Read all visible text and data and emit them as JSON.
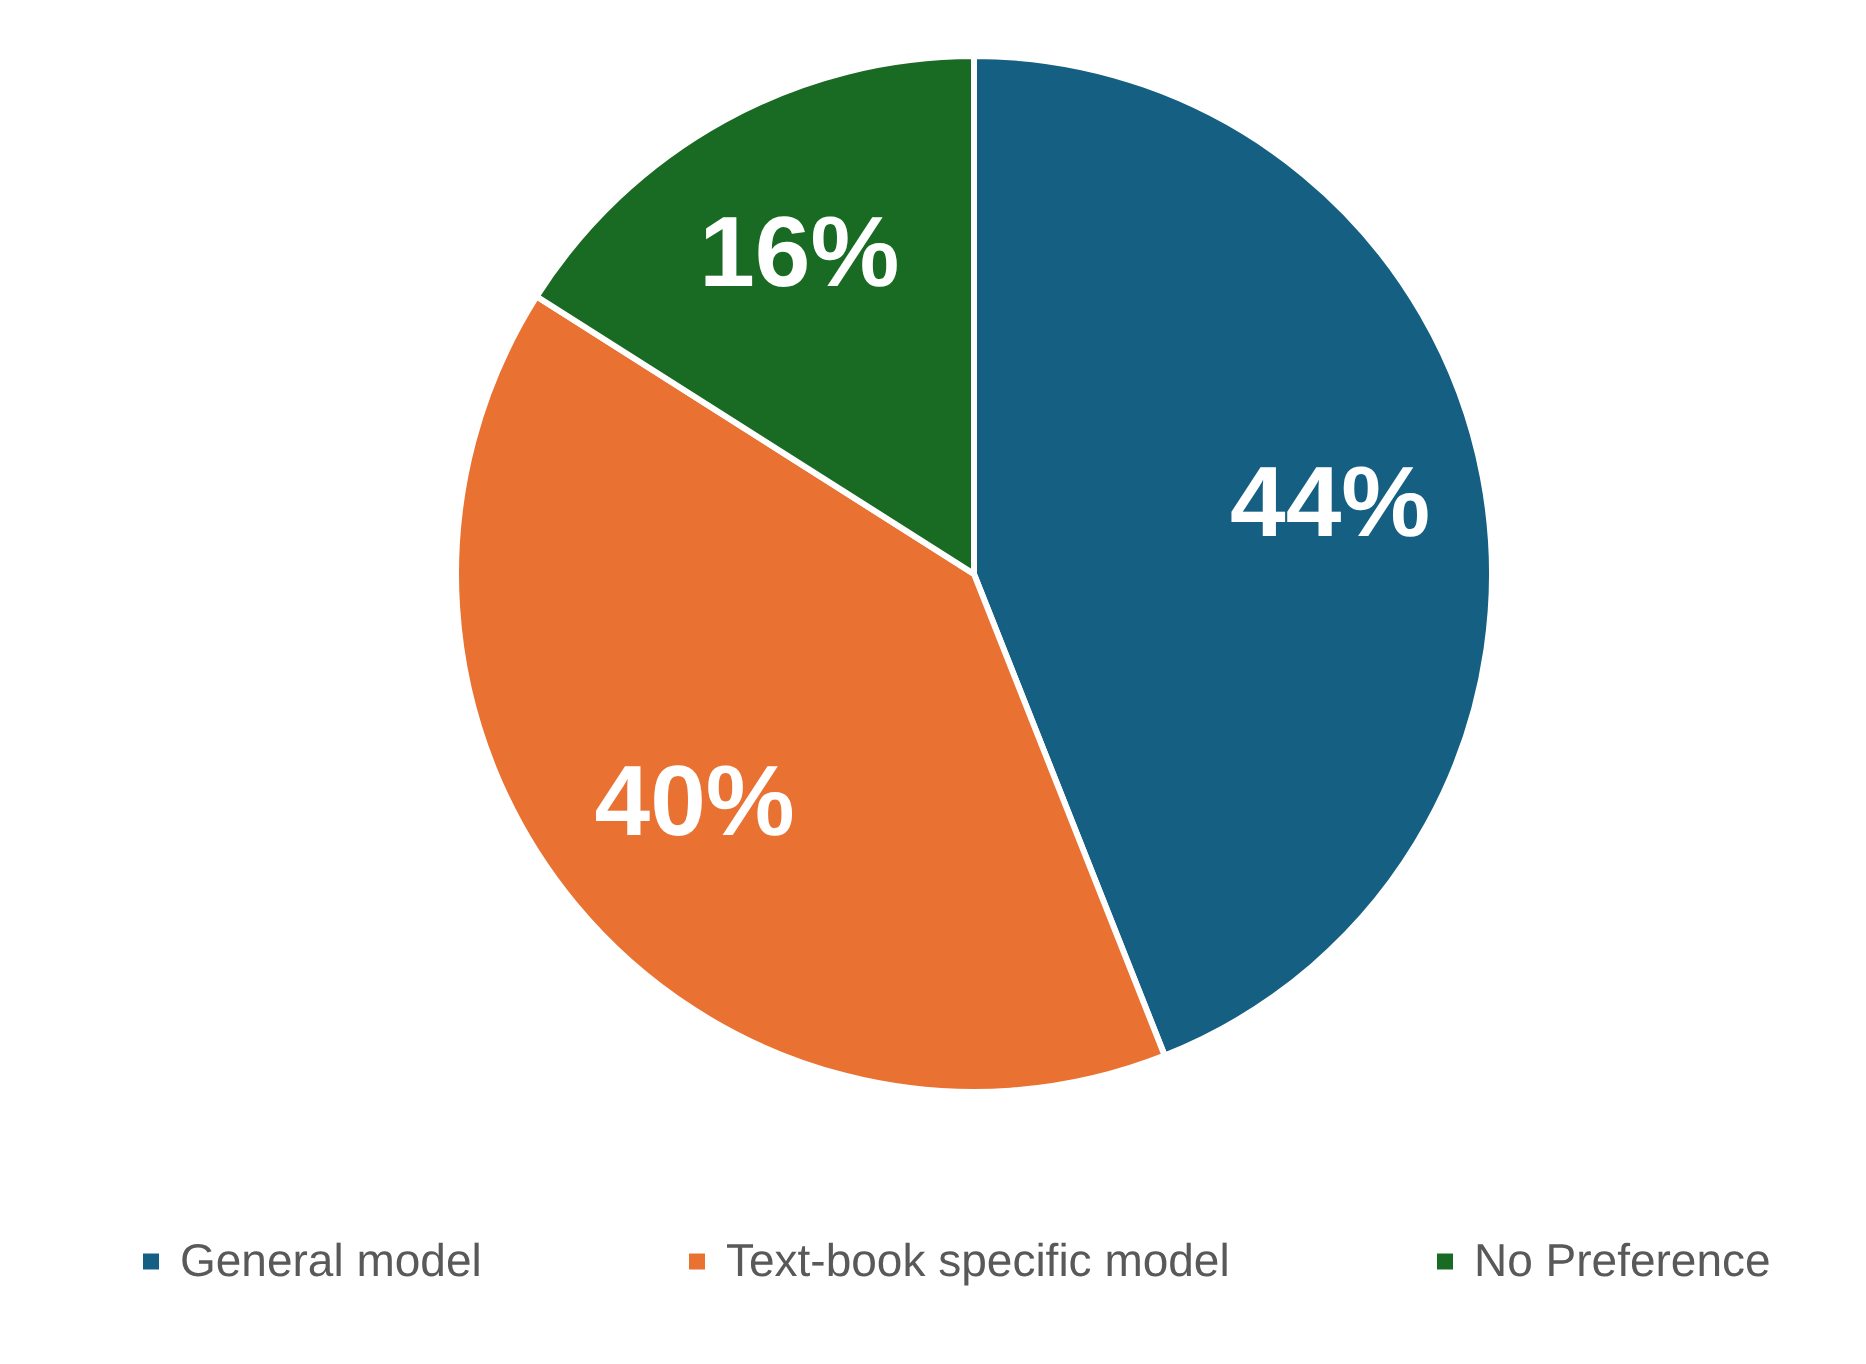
{
  "chart_data": {
    "type": "pie",
    "categories": [
      "General model",
      "Text-book specific model",
      "No Preference"
    ],
    "values": [
      44,
      40,
      16
    ],
    "colors": [
      "#156082",
      "#e97132",
      "#196b24"
    ],
    "value_labels": [
      "44%",
      "40%",
      "16%"
    ],
    "legend": "bottom"
  }
}
